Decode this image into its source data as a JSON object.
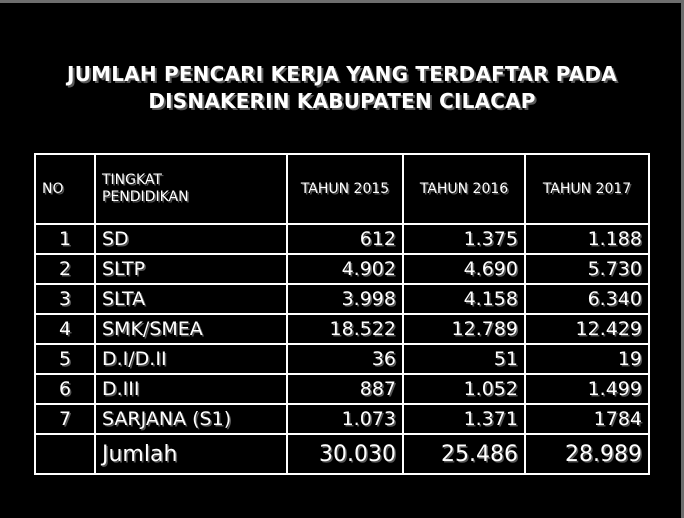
{
  "title": {
    "line1": "JUMLAH PENCARI KERJA YANG TERDAFTAR PADA",
    "line2": "DISNAKERIN KABUPATEN CILACAP"
  },
  "table": {
    "headers": {
      "no": "NO",
      "tingkat_line1": "TINGKAT",
      "tingkat_line2": "PENDIDIKAN",
      "y2015": "TAHUN 2015",
      "y2016": "TAHUN 2016",
      "y2017": "TAHUN 2017"
    },
    "rows": [
      {
        "no": "1",
        "level": "SD",
        "y2015": "612",
        "y2016": "1.375",
        "y2017": "1.188"
      },
      {
        "no": "2",
        "level": "SLTP",
        "y2015": "4.902",
        "y2016": "4.690",
        "y2017": "5.730"
      },
      {
        "no": "3",
        "level": "SLTA",
        "y2015": "3.998",
        "y2016": "4.158",
        "y2017": "6.340"
      },
      {
        "no": "4",
        "level": "SMK/SMEA",
        "y2015": "18.522",
        "y2016": "12.789",
        "y2017": "12.429"
      },
      {
        "no": "5",
        "level": "D.I/D.II",
        "y2015": "36",
        "y2016": "51",
        "y2017": "19"
      },
      {
        "no": "6",
        "level": "D.III",
        "y2015": "887",
        "y2016": "1.052",
        "y2017": "1.499"
      },
      {
        "no": "7",
        "level": "SARJANA (S1)",
        "y2015": "1.073",
        "y2016": "1.371",
        "y2017": "1784"
      }
    ],
    "total": {
      "label": "Jumlah",
      "y2015": "30.030",
      "y2016": "25.486",
      "y2017": "28.989"
    }
  },
  "colors": {
    "background": "#000000",
    "text": "#ffffff",
    "total_values": "#ffff99",
    "border": "#ffffff"
  }
}
